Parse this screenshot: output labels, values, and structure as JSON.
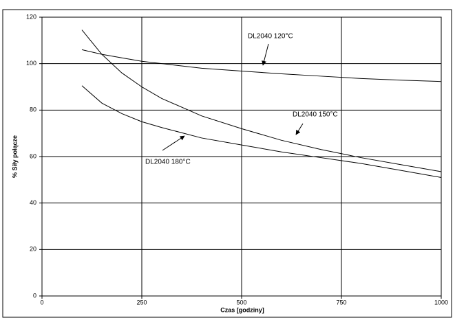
{
  "chart_data": {
    "type": "line",
    "xlabel": "Czas [godziny]",
    "ylabel": "% Siły połącze",
    "x": [
      100,
      150,
      200,
      250,
      300,
      400,
      500,
      600,
      700,
      800,
      900,
      1000
    ],
    "series": [
      {
        "name": "DL2040 120°C",
        "color": "#000000",
        "values": [
          106,
          104,
          102.5,
          101,
          100,
          98,
          96.8,
          95.6,
          94.6,
          93.6,
          92.9,
          92.3
        ]
      },
      {
        "name": "DL2040 150°C",
        "color": "#000000",
        "values": [
          114.5,
          104,
          96,
          90,
          85,
          77.5,
          72,
          67,
          63,
          59.5,
          56.5,
          53.5
        ]
      },
      {
        "name": "DL2040 180°C",
        "color": "#000000",
        "values": [
          90.5,
          83,
          78.5,
          75,
          72.5,
          68,
          65,
          62,
          59.5,
          57,
          54,
          51
        ]
      }
    ],
    "xlim": [
      0,
      1000
    ],
    "xticks": [
      0,
      250,
      500,
      750,
      1000
    ],
    "ylim": [
      0,
      120
    ],
    "yticks": [
      0,
      20,
      40,
      60,
      80,
      100,
      120
    ],
    "grid": true
  }
}
